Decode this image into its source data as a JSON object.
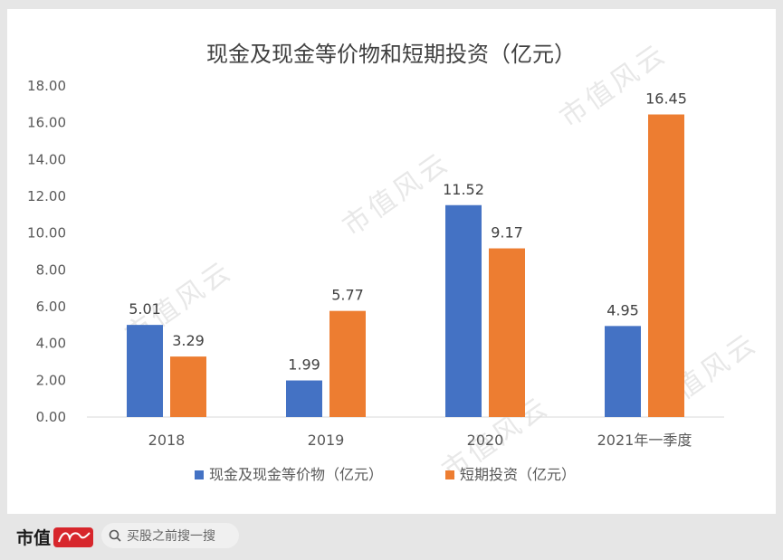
{
  "chart_data": {
    "type": "bar",
    "title": "现金及现金等价物和短期投资（亿元）",
    "categories": [
      "2018",
      "2019",
      "2020",
      "2021年一季度"
    ],
    "series": [
      {
        "name": "现金及现金等价物（亿元）",
        "values": [
          5.01,
          1.99,
          11.52,
          4.95
        ],
        "color": "#4472c4"
      },
      {
        "name": "短期投资（亿元）",
        "values": [
          3.29,
          5.77,
          9.17,
          16.45
        ],
        "color": "#ed7d31"
      }
    ],
    "value_labels": [
      [
        "5.01",
        "1.99",
        "11.52",
        "4.95"
      ],
      [
        "3.29",
        "5.77",
        "9.17",
        "16.45"
      ]
    ],
    "yticks": [
      "0.00",
      "2.00",
      "4.00",
      "6.00",
      "8.00",
      "10.00",
      "12.00",
      "14.00",
      "16.00",
      "18.00"
    ],
    "ylim": [
      0,
      18
    ],
    "grid": false,
    "legend": "bottom"
  },
  "watermark_text": "市值风云",
  "footer": {
    "brand": "市值",
    "search_placeholder": "买股之前搜一搜",
    "icons": {
      "search": "search-icon",
      "logo": "brand-logo"
    }
  }
}
